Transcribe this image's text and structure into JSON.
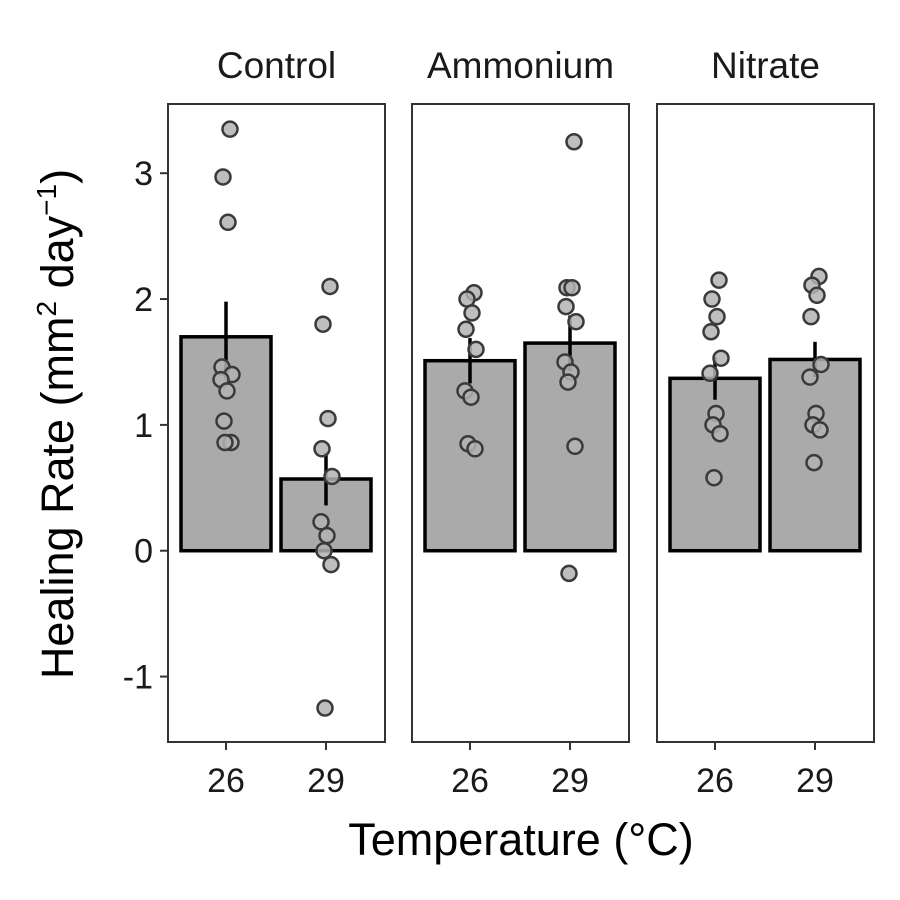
{
  "chart_data": {
    "type": "bar",
    "xlabel": "Temperature (°C)",
    "ylabel": {
      "main": "Healing Rate (mm",
      "sup1": "2",
      "mid": " day",
      "sup2": "−1",
      "end": ")"
    },
    "ylim": [
      -1.52,
      3.55
    ],
    "y_ticks": [
      -1,
      0,
      1,
      2,
      3
    ],
    "categories": [
      "26",
      "29"
    ],
    "facets": [
      {
        "name": "Control",
        "bars": [
          {
            "x": "26",
            "mean": 1.7,
            "se": 0.28,
            "points": [
              3.35,
              2.97,
              2.61,
              1.46,
              1.4,
              1.36,
              1.27,
              1.03,
              0.86,
              0.86
            ]
          },
          {
            "x": "29",
            "mean": 0.57,
            "se": 0.21,
            "points": [
              2.1,
              1.8,
              1.05,
              0.81,
              0.59,
              0.23,
              0.12,
              0.0,
              -0.11,
              -1.25
            ]
          }
        ]
      },
      {
        "name": "Ammonium",
        "bars": [
          {
            "x": "26",
            "mean": 1.51,
            "se": 0.18,
            "points": [
              2.05,
              2.0,
              1.89,
              1.76,
              1.6,
              1.27,
              1.22,
              0.85,
              0.81
            ]
          },
          {
            "x": "29",
            "mean": 1.65,
            "se": 0.22,
            "points": [
              3.25,
              2.09,
              2.09,
              1.94,
              1.82,
              1.5,
              1.42,
              1.34,
              0.83,
              -0.18
            ]
          }
        ]
      },
      {
        "name": "Nitrate",
        "bars": [
          {
            "x": "26",
            "mean": 1.37,
            "se": 0.17,
            "points": [
              2.15,
              2.0,
              1.86,
              1.74,
              1.53,
              1.41,
              1.09,
              1.0,
              0.93,
              0.58
            ]
          },
          {
            "x": "29",
            "mean": 1.52,
            "se": 0.14,
            "points": [
              2.18,
              2.11,
              2.03,
              1.86,
              1.48,
              1.38,
              1.09,
              1.0,
              0.96,
              0.7
            ]
          }
        ]
      }
    ],
    "colors": {
      "bar_fill": "#aaaaaa",
      "bar_stroke": "#000000",
      "point_fill": "#b3b3b3",
      "point_stroke": "#3a3a3a",
      "panel_border": "#333333",
      "errorbar": "#000000"
    },
    "grid": false,
    "legend": "none"
  }
}
